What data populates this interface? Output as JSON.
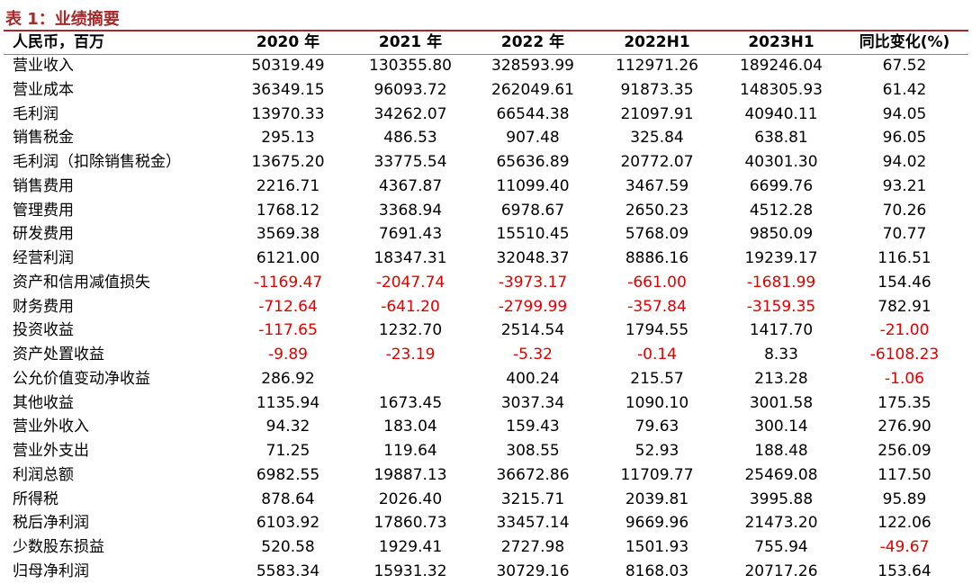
{
  "title": "表 1：业绩摘要",
  "table": {
    "header": [
      "人民币，百万",
      "2020 年",
      "2021 年",
      "2022 年",
      "2022H1",
      "2023H1",
      "同比变化(%)"
    ],
    "rows": [
      [
        "营业收入",
        "50319.49",
        "130355.80",
        "328593.99",
        "112971.26",
        "189246.04",
        "67.52"
      ],
      [
        "营业成本",
        "36349.15",
        "96093.72",
        "262049.61",
        "91873.35",
        "148305.93",
        "61.42"
      ],
      [
        "毛利润",
        "13970.33",
        "34262.07",
        "66544.38",
        "21097.91",
        "40940.11",
        "94.05"
      ],
      [
        "销售税金",
        "295.13",
        "486.53",
        "907.48",
        "325.84",
        "638.81",
        "96.05"
      ],
      [
        "毛利润（扣除销售税金）",
        "13675.20",
        "33775.54",
        "65636.89",
        "20772.07",
        "40301.30",
        "94.02"
      ],
      [
        "销售费用",
        "2216.71",
        "4367.87",
        "11099.40",
        "3467.59",
        "6699.76",
        "93.21"
      ],
      [
        "管理费用",
        "1768.12",
        "3368.94",
        "6978.67",
        "2650.23",
        "4512.28",
        "70.26"
      ],
      [
        "研发费用",
        "3569.38",
        "7691.43",
        "15510.45",
        "5768.09",
        "9850.09",
        "70.77"
      ],
      [
        "经营利润",
        "6121.00",
        "18347.31",
        "32048.37",
        "8886.16",
        "19239.17",
        "116.51"
      ],
      [
        "资产和信用减值损失",
        "-1169.47",
        "-2047.74",
        "-3973.17",
        "-661.00",
        "-1681.99",
        "154.46"
      ],
      [
        "财务费用",
        "-712.64",
        "-641.20",
        "-2799.99",
        "-357.84",
        "-3159.35",
        "782.91"
      ],
      [
        "投资收益",
        "-117.65",
        "1232.70",
        "2514.54",
        "1794.55",
        "1417.70",
        "-21.00"
      ],
      [
        "资产处置收益",
        "-9.89",
        "-23.19",
        "-5.32",
        "-0.14",
        "8.33",
        "-6108.23"
      ],
      [
        "公允价值变动净收益",
        "286.92",
        null,
        "400.24",
        "215.57",
        "213.28",
        "-1.06"
      ],
      [
        "其他收益",
        "1135.94",
        "1673.45",
        "3037.34",
        "1090.10",
        "3001.58",
        "175.35"
      ],
      [
        "营业外收入",
        "94.32",
        "183.04",
        "159.43",
        "79.63",
        "300.14",
        "276.90"
      ],
      [
        "营业外支出",
        "71.25",
        "119.64",
        "308.55",
        "52.93",
        "188.48",
        "256.09"
      ],
      [
        "利润总额",
        "6982.55",
        "19887.13",
        "36672.86",
        "11709.77",
        "25469.08",
        "117.50"
      ],
      [
        "所得税",
        "878.64",
        "2026.40",
        "3215.71",
        "2039.81",
        "3995.88",
        "95.89"
      ],
      [
        "税后净利润",
        "6103.92",
        "17860.73",
        "33457.14",
        "9669.96",
        "21473.20",
        "122.06"
      ],
      [
        "少数股东损益",
        "520.58",
        "1929.41",
        "2727.98",
        "1501.93",
        "755.94",
        "-49.67"
      ],
      [
        "归母净利润",
        "5583.34",
        "15931.32",
        "30729.16",
        "8168.03",
        "20717.26",
        "153.64"
      ]
    ]
  }
}
